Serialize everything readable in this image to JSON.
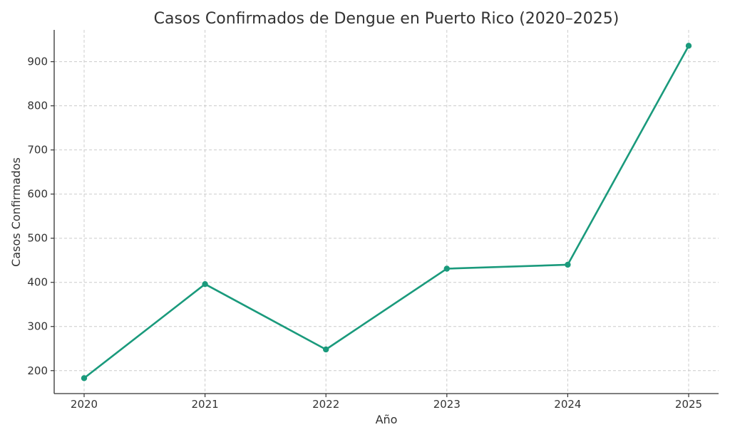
{
  "chart_data": {
    "type": "line",
    "title": "Casos Confirmados de Dengue en Puerto Rico (2020–2025)",
    "xlabel": "Año",
    "ylabel": "Casos Confirmados",
    "categories": [
      "2020",
      "2021",
      "2022",
      "2023",
      "2024",
      "2025"
    ],
    "series": [
      {
        "values": [
          183,
          396,
          248,
          431,
          440,
          936
        ]
      }
    ],
    "yticks": [
      200,
      300,
      400,
      500,
      600,
      700,
      800,
      900
    ],
    "ylim": [
      148,
      972
    ],
    "grid": true,
    "colors": {
      "line": "#1a9a7c",
      "axis": "#333333",
      "grid": "#cccccc",
      "text": "#333333"
    }
  }
}
